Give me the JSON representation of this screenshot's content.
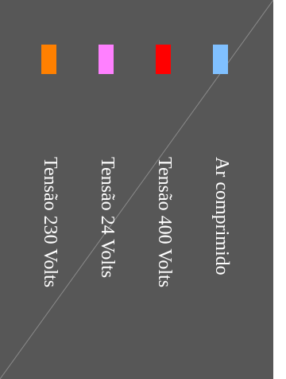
{
  "legend": {
    "background": "#575757",
    "items": [
      {
        "label": "Tensão 230 Volts",
        "color": "#ff8000"
      },
      {
        "label": "Tensão 24 Volts",
        "color": "#ff80ff"
      },
      {
        "label": "Tensão 400 Volts",
        "color": "#ff0000"
      },
      {
        "label": "Ar comprimido",
        "color": "#80c0ff"
      }
    ]
  }
}
